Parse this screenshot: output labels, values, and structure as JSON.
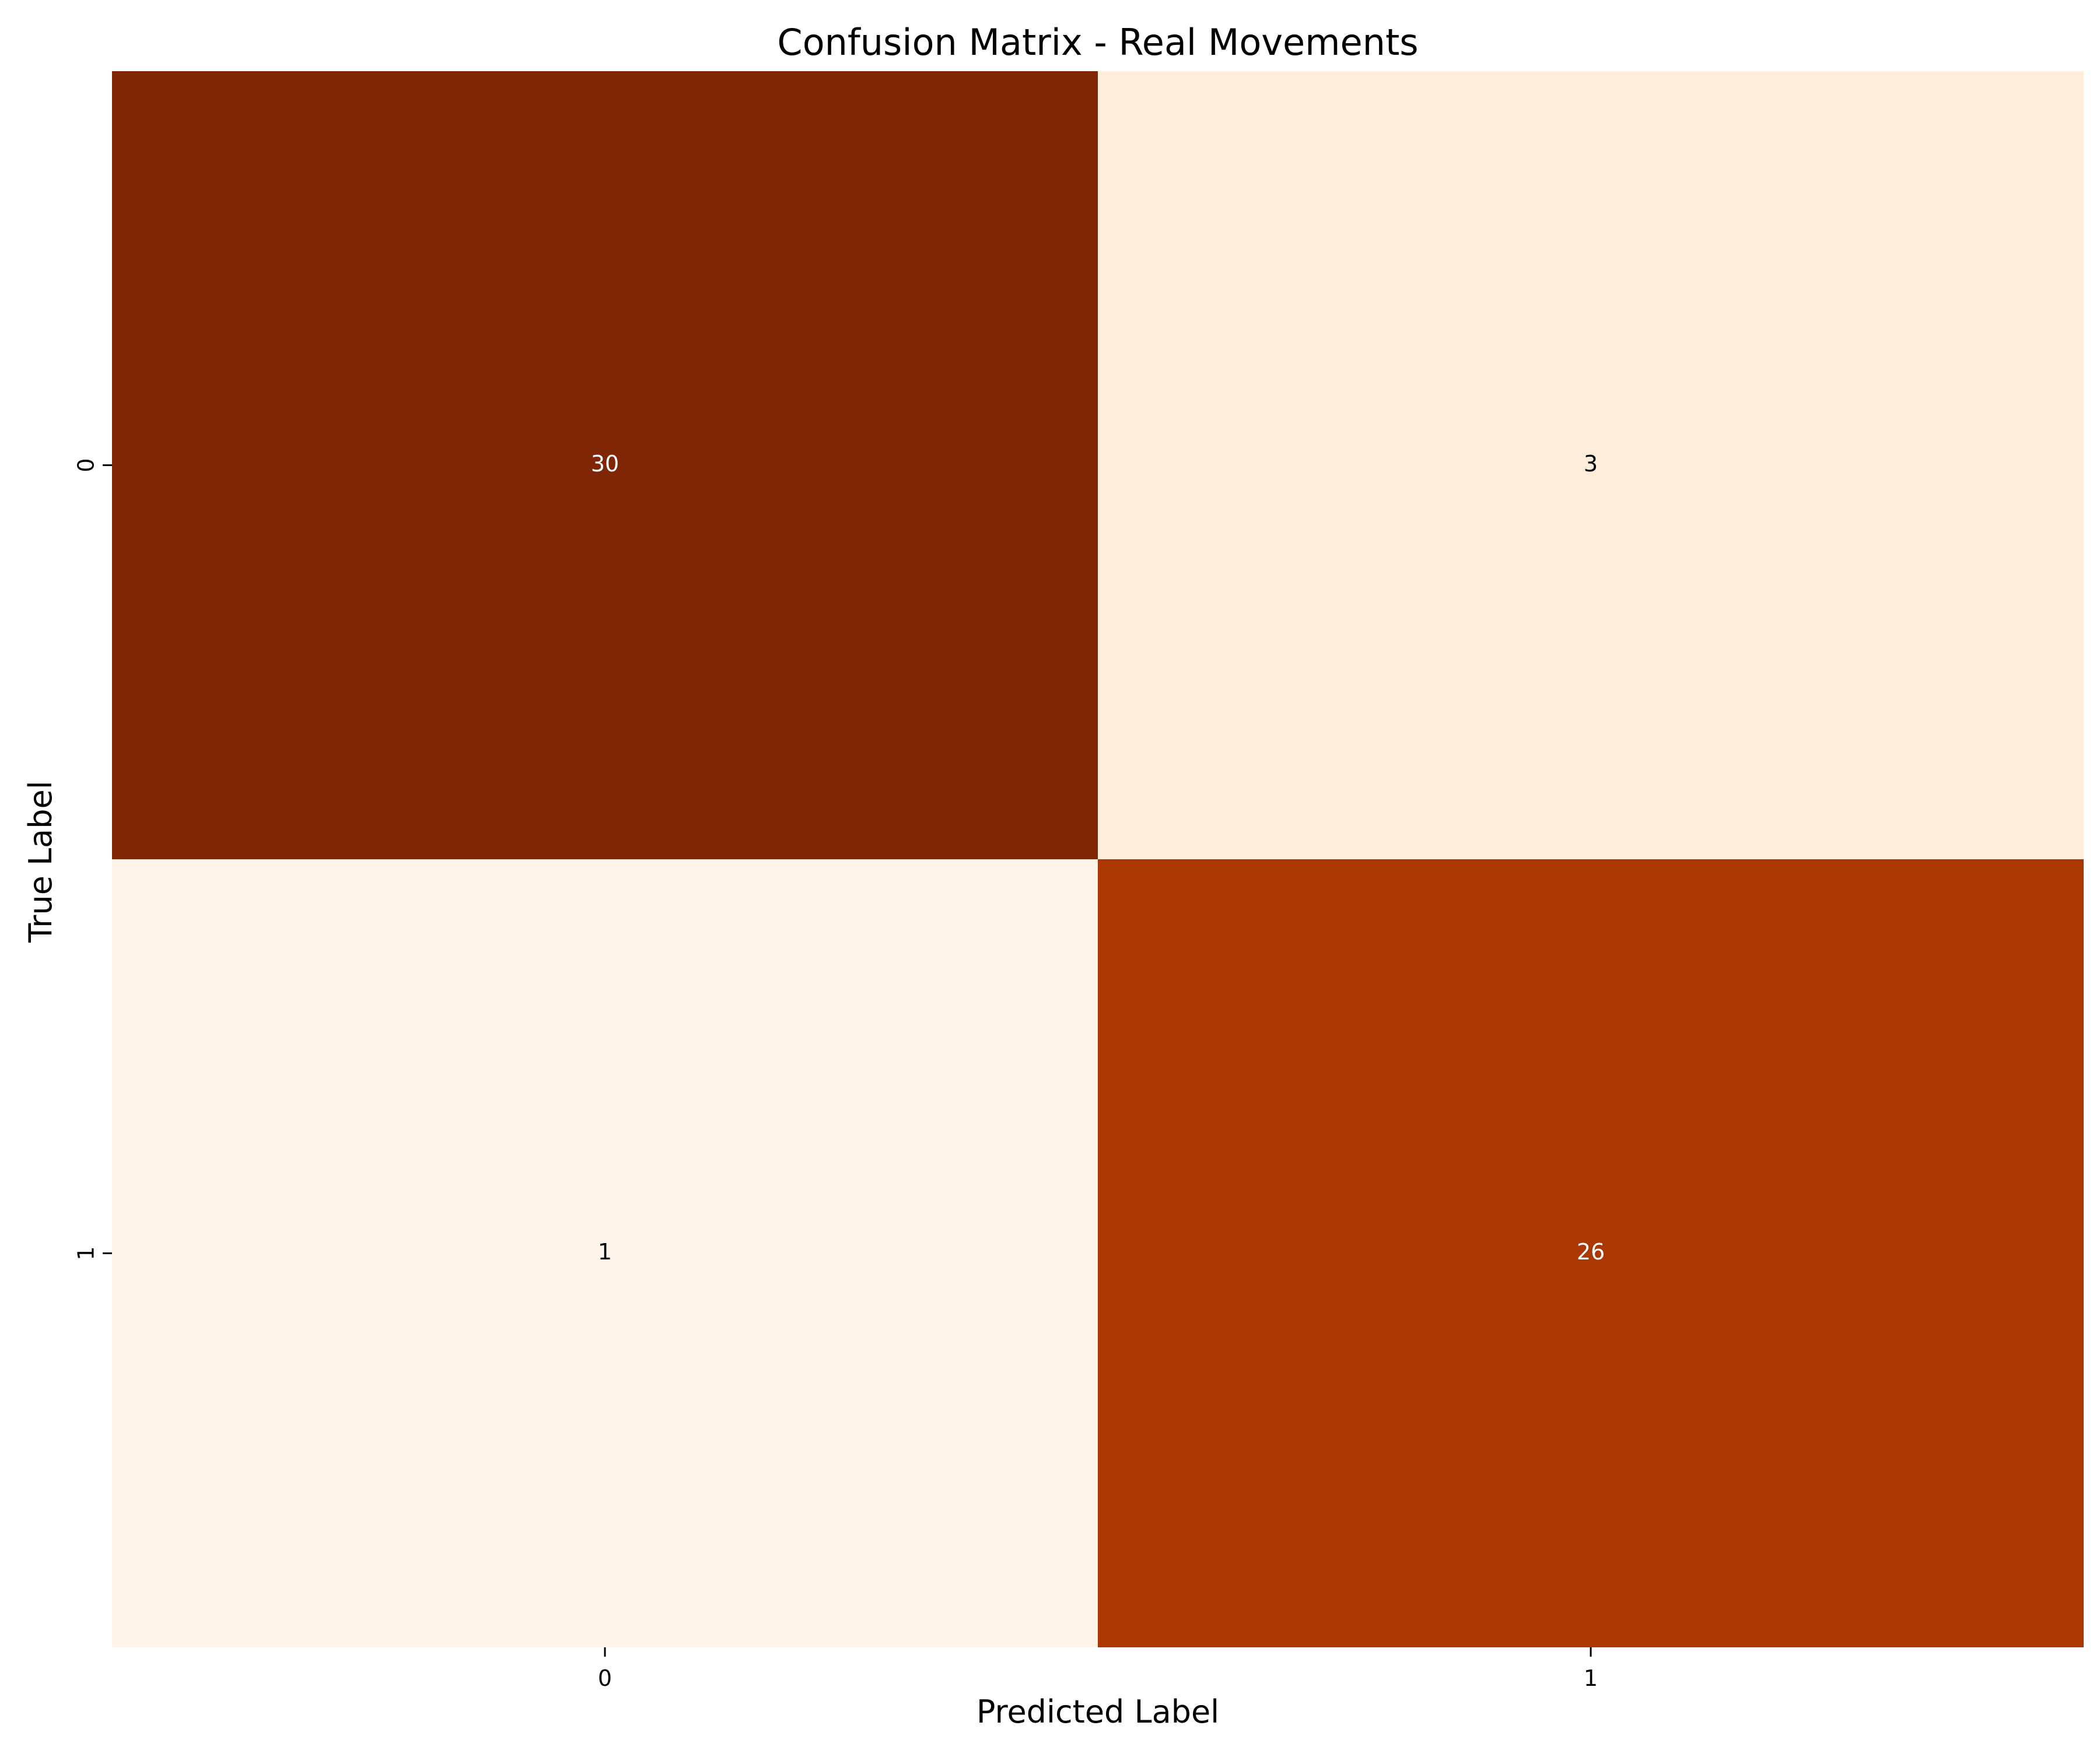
{
  "chart_data": {
    "type": "heatmap",
    "title": "Confusion Matrix - Real Movements",
    "xlabel": "Predicted Label",
    "ylabel": "True Label",
    "x_categories": [
      "0",
      "1"
    ],
    "y_categories": [
      "0",
      "1"
    ],
    "values": [
      [
        30,
        3
      ],
      [
        1,
        26
      ]
    ],
    "cell_labels": [
      [
        "30",
        "3"
      ],
      [
        "1",
        "26"
      ]
    ],
    "value_range": [
      1,
      30
    ],
    "colormap": "Oranges",
    "colors": {
      "low": "#fff5eb",
      "high": "#7f2704"
    },
    "grid": false,
    "colorbar": false
  }
}
